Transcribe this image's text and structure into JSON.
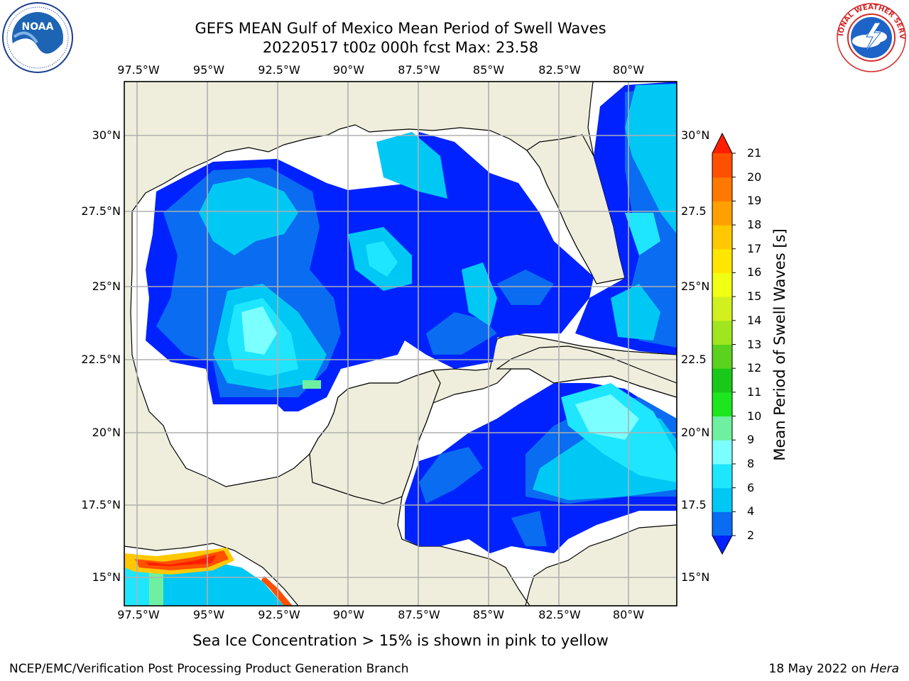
{
  "title": {
    "line1": "GEFS MEAN Gulf of Mexico Mean Period of Swell Waves",
    "line2": "20220517 t00z 000h fcst   Max: 23.58"
  },
  "logos": {
    "left": {
      "name": "NOAA",
      "ring_text": "NATIONAL OCEANIC AND ATMOSPHERIC ADMINISTRATION · U.S. DEPARTMENT OF COMMERCE"
    },
    "right": {
      "name": "NATIONAL WEATHER SERVICE"
    }
  },
  "map": {
    "lon_ticks": [
      "97.5°W",
      "95°W",
      "92.5°W",
      "90°W",
      "87.5°W",
      "85°W",
      "82.5°W",
      "80°W"
    ],
    "lat_ticks_left": [
      "30°N",
      "27.5°N",
      "25°N",
      "22.5°N",
      "20°N",
      "17.5°N",
      "15°N"
    ],
    "lat_ticks_right": [
      "30°N",
      "27.5",
      "25°N",
      "22.5",
      "20°N",
      "17.5",
      "15°N"
    ],
    "lon_range": [
      -98.0,
      -78.5
    ],
    "lat_range": [
      14.0,
      31.8
    ],
    "grid": true,
    "colors": {
      "land": "#efeedd",
      "ocean_missing": "#ffffff",
      "coast": "#000000",
      "grid": "#b0b0b0"
    }
  },
  "colorbar": {
    "label": "Mean Period of Swell Waves [s]",
    "ticks": [
      "2",
      "4",
      "6",
      "8",
      "9",
      "10",
      "11",
      "12",
      "13",
      "14",
      "15",
      "16",
      "17",
      "18",
      "19",
      "20",
      "21"
    ],
    "colors": [
      "#0022ff",
      "#0a6cf0",
      "#00c8f5",
      "#1ee6ff",
      "#7cffff",
      "#6ef0a0",
      "#1ee61e",
      "#19c819",
      "#5ad21e",
      "#a0e61e",
      "#d2f01e",
      "#f0ff14",
      "#ffe600",
      "#ffc800",
      "#ffa000",
      "#ff7800",
      "#ff5000",
      "#ff1e00"
    ],
    "extend": "both"
  },
  "caption": "Sea Ice Concentration > 15% is shown in pink to yellow",
  "footer": {
    "left": "NCEP/EMC/Verification Post Processing Product Generation Branch",
    "date": "18 May 2022 on ",
    "host": "Hera"
  }
}
